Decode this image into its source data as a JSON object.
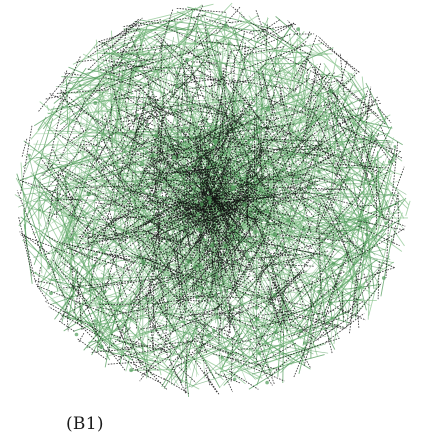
{
  "figure": {
    "panel_label": "(B1)",
    "description_type": "network-hairball",
    "colors": {
      "background": "#ffffff",
      "edge_green": "#4f9a58",
      "edge_light_green": "#8cc690",
      "edge_dark": "#111111"
    }
  }
}
